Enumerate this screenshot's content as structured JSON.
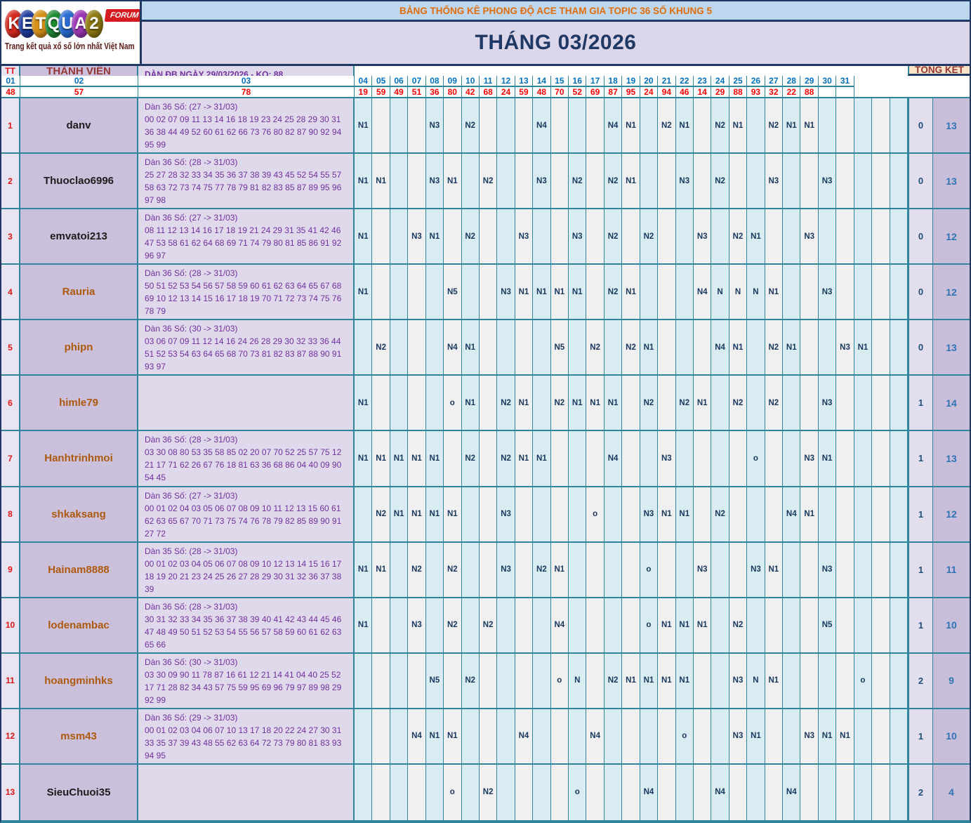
{
  "logo": {
    "letters": [
      {
        "ch": "K",
        "bg": "#D6281E"
      },
      {
        "ch": "E",
        "bg": "#1E3D9E"
      },
      {
        "ch": "T",
        "bg": "#D79017"
      },
      {
        "ch": "Q",
        "bg": "#1E8B33"
      },
      {
        "ch": "U",
        "bg": "#2A6BD2"
      },
      {
        "ch": "A",
        "bg": "#9C36B5"
      },
      {
        "ch": "2",
        "bg": "#8F7A0F"
      }
    ],
    "forum_label": "FORUM",
    "tagline": "Trang kết quả xổ số lớn nhất Việt Nam"
  },
  "banner": {
    "title": "BẢNG THỐNG KÊ PHONG ĐỘ ACE THAM GIA TOPIC 36 SỐ KHUNG 5"
  },
  "month_title": "THÁNG 03/2026",
  "table": {
    "headers": {
      "tt": "TT",
      "member": "THÀNH VIÊN",
      "dan": "DÀN ĐB NGÀY 29/03/2026 - KQ: 88",
      "summary": "TỔNG KẾT"
    },
    "days": [
      "01",
      "02",
      "03",
      "04",
      "05",
      "06",
      "07",
      "08",
      "09",
      "10",
      "11",
      "12",
      "13",
      "14",
      "15",
      "16",
      "17",
      "18",
      "19",
      "20",
      "21",
      "22",
      "23",
      "24",
      "25",
      "26",
      "27",
      "28",
      "29",
      "30",
      "31"
    ],
    "results": [
      "48",
      "57",
      "78",
      "19",
      "59",
      "49",
      "51",
      "36",
      "80",
      "42",
      "68",
      "24",
      "59",
      "48",
      "70",
      "52",
      "69",
      "87",
      "95",
      "24",
      "94",
      "46",
      "14",
      "29",
      "88",
      "93",
      "32",
      "22",
      "88",
      "",
      ""
    ],
    "members": [
      {
        "tt": "1",
        "name": "danv",
        "name_style": "dark",
        "dan_title": "Dàn 36 Số: (27 -> 31/03)",
        "dan_numbers": "00 02 07 09 11 13 14 16 18 19 23 24 25 28 29 30 31 36 38 44 49 52 60 61 62 66 73 76 80 82 87 90 92 94 95 99",
        "cells": {
          "1": "N1",
          "5": "N3",
          "7": "N2",
          "11": "N4",
          "15": "N4",
          "16": "N1",
          "18": "N2",
          "19": "N1",
          "21": "N2",
          "22": "N1",
          "24": "N2",
          "25": "N1",
          "26": "N1"
        },
        "miss": "0",
        "total": "13"
      },
      {
        "tt": "2",
        "name": "Thuoclao6996",
        "name_style": "dark",
        "dan_title": "Dàn 36 Số: (28 -> 31/03)",
        "dan_numbers": "25 27 28 32 33 34 35 36 37 38 39 43 45 52 54 55 57 58 63 72 73 74 75 77 78 79 81 82 83 85 87 89 95 96 97 98",
        "cells": {
          "1": "N1",
          "2": "N1",
          "5": "N3",
          "6": "N1",
          "8": "N2",
          "11": "N3",
          "13": "N2",
          "15": "N2",
          "16": "N1",
          "19": "N3",
          "21": "N2",
          "24": "N3",
          "27": "N3"
        },
        "miss": "0",
        "total": "13"
      },
      {
        "tt": "3",
        "name": "emvatoi213",
        "name_style": "dark",
        "dan_title": "Dàn 36 Số: (27 -> 31/03)",
        "dan_numbers": "08 11 12 13 14 16 17 18 19 21 24 29 31 35 41 42 46 47 53 58 61 62 64 68 69 71 74 79 80 81 85 86 91 92 96 97",
        "cells": {
          "1": "N1",
          "4": "N3",
          "5": "N1",
          "7": "N2",
          "10": "N3",
          "13": "N3",
          "15": "N2",
          "17": "N2",
          "20": "N3",
          "22": "N2",
          "23": "N1",
          "26": "N3"
        },
        "miss": "0",
        "total": "12"
      },
      {
        "tt": "4",
        "name": "Rauria",
        "name_style": "brown",
        "dan_title": "Dàn 36 Số: (28 -> 31/03)",
        "dan_numbers": "50 51 52 53 54 56 57 58 59 60 61 62 63 64 65 67 68 69 10 12 13 14 15 16 17 18 19 70 71 72 73 74 75 76 78 79",
        "cells": {
          "1": "N1",
          "6": "N5",
          "9": "N3",
          "10": "N1",
          "11": "N1",
          "12": "N1",
          "13": "N1",
          "15": "N2",
          "16": "N1",
          "20": "N4",
          "21": "N",
          "22": "N",
          "23": "N",
          "24": "N1",
          "27": "N3"
        },
        "miss": "0",
        "total": "12"
      },
      {
        "tt": "5",
        "name": "phipn",
        "name_style": "brown",
        "dan_title": "Dàn 36 Số: (30 -> 31/03)",
        "dan_numbers": "03 06 07 09 11 12 14 16 24 26 28 29 30 32 33 36 44 51 52 53 54 63 64 65 68 70 73 81 82 83 87 88 90 91 93 97",
        "cells": {
          "2": "N2",
          "6": "N4",
          "7": "N1",
          "12": "N5",
          "14": "N2",
          "16": "N2",
          "17": "N1",
          "21": "N4",
          "22": "N1",
          "24": "N2",
          "25": "N1",
          "28": "N3",
          "29": "N1"
        },
        "miss": "0",
        "total": "13"
      },
      {
        "tt": "6",
        "name": "himle79",
        "name_style": "brown",
        "dan_title": "",
        "dan_numbers": "",
        "cells": {
          "1": "N1",
          "6": "o",
          "7": "N1",
          "9": "N2",
          "10": "N1",
          "12": "N2",
          "13": "N1",
          "14": "N1",
          "15": "N1",
          "17": "N2",
          "19": "N2",
          "20": "N1",
          "22": "N2",
          "24": "N2",
          "27": "N3"
        },
        "miss": "1",
        "total": "14"
      },
      {
        "tt": "7",
        "name": "Hanhtrinhmoi",
        "name_style": "brown",
        "dan_title": "Dàn 36 Số: (28 -> 31/03)",
        "dan_numbers": "03 30 08 80 53 35 58 85 02 20 07 70 52 25 57 75 12 21 17 71 62 26 67 76 18 81 63 36 68 86 04 40 09 90 54 45",
        "cells": {
          "1": "N1",
          "2": "N1",
          "3": "N1",
          "4": "N1",
          "5": "N1",
          "7": "N2",
          "9": "N2",
          "10": "N1",
          "11": "N1",
          "15": "N4",
          "18": "N3",
          "23": "o",
          "26": "N3",
          "27": "N1"
        },
        "miss": "1",
        "total": "13"
      },
      {
        "tt": "8",
        "name": "shkaksang",
        "name_style": "brown",
        "dan_title": "Dàn 36 Số: (27 -> 31/03)",
        "dan_numbers": "00 01 02 04 03 05 06 07 08 09 10 11 12 13 15 60 61 62 63 65 67 70 71 73 75 74 76 78 79 82 85 89 90 91 27 72",
        "cells": {
          "2": "N2",
          "3": "N1",
          "4": "N1",
          "5": "N1",
          "6": "N1",
          "9": "N3",
          "14": "o",
          "17": "N3",
          "18": "N1",
          "19": "N1",
          "21": "N2",
          "25": "N4",
          "26": "N1"
        },
        "miss": "1",
        "total": "12"
      },
      {
        "tt": "9",
        "name": "Hainam8888",
        "name_style": "brown",
        "dan_title": "Dàn 35 Số: (28 -> 31/03)",
        "dan_numbers": "00 01 02 03 04 05 06 07 08 09 10 12 13 14 15 16 17 18 19 20 21 23 24 25 26 27 28 29 30 31 32 36 37 38 39",
        "cells": {
          "1": "N1",
          "2": "N1",
          "4": "N2",
          "6": "N2",
          "9": "N3",
          "11": "N2",
          "12": "N1",
          "17": "o",
          "20": "N3",
          "23": "N3",
          "24": "N1",
          "27": "N3"
        },
        "miss": "1",
        "total": "11"
      },
      {
        "tt": "10",
        "name": "lodenambac",
        "name_style": "brown",
        "dan_title": "Dàn 36 Số: (28 -> 31/03)",
        "dan_numbers": "30 31 32 33 34 35 36 37 38 39 40 41 42 43 44 45 46 47 48 49 50 51 52 53 54 55 56 57 58 59 60 61 62 63 65 66",
        "cells": {
          "1": "N1",
          "4": "N3",
          "6": "N2",
          "8": "N2",
          "12": "N4",
          "17": "o",
          "18": "N1",
          "19": "N1",
          "20": "N1",
          "22": "N2",
          "27": "N5"
        },
        "miss": "1",
        "total": "10"
      },
      {
        "tt": "11",
        "name": "hoangminhks",
        "name_style": "brown",
        "dan_title": "Dàn 36 Số: (30 -> 31/03)",
        "dan_numbers": "03 30 09 90 11 78 87 16 61 12 21 14 41 04 40 25 52 17 71 28 82 34 43 57 75 59 95 69 96 79 97 89 98 29 92 99",
        "cells": {
          "5": "N5",
          "7": "N2",
          "12": "o",
          "13": "N",
          "15": "N2",
          "16": "N1",
          "17": "N1",
          "18": "N1",
          "19": "N1",
          "22": "N3",
          "23": "N",
          "24": "N1",
          "29": "o"
        },
        "miss": "2",
        "total": "9"
      },
      {
        "tt": "12",
        "name": "msm43",
        "name_style": "brown",
        "dan_title": "Dàn 36 Số: (29 -> 31/03)",
        "dan_numbers": "00 01 02 03 04 06 07 10 13 17 18 20 22 24 27 30 31 33 35 37 39 43 48 55 62 63 64 72 73 79 80 81 83 93 94 95",
        "cells": {
          "4": "N4",
          "5": "N1",
          "6": "N1",
          "10": "N4",
          "14": "N4",
          "19": "o",
          "22": "N3",
          "23": "N1",
          "26": "N3",
          "27": "N1",
          "28": "N1"
        },
        "miss": "1",
        "total": "10"
      },
      {
        "tt": "13",
        "name": "SieuChuoi35",
        "name_style": "dark",
        "dan_title": "",
        "dan_numbers": "",
        "cells": {
          "6": "o",
          "8": "N2",
          "13": "o",
          "17": "N4",
          "21": "N4",
          "25": "N4"
        },
        "miss": "2",
        "total": "4"
      }
    ]
  },
  "colors": {
    "accent_navy": "#1F3864",
    "grid_teal": "#2F859C",
    "banner_bg": "#BDD7EE",
    "banner_text": "#E36C0A",
    "month_bg": "#DBD6E9",
    "header_bg": "#FBE3C8",
    "header_text": "#943634",
    "day_number_blue": "#0070C0",
    "result_red": "#FE0000",
    "cell_text_navy": "#17375E",
    "day_odd_bg": "#D8ECF2",
    "day_even_bg": "#F1F0F1",
    "tt_bg": "#E8E4F1",
    "member_bg": "#CBC0DB",
    "dan_bg": "#DFD9EB",
    "dan_text_purple": "#7030A0",
    "miss_bg": "#E3DEEE",
    "miss_text": "#1F4E79",
    "total_bg": "#C9BED9",
    "total_text": "#2E74B5",
    "name_dark": "#1C1C1C",
    "name_brown": "#AE5A0E",
    "forum_red": "#D6191F"
  }
}
